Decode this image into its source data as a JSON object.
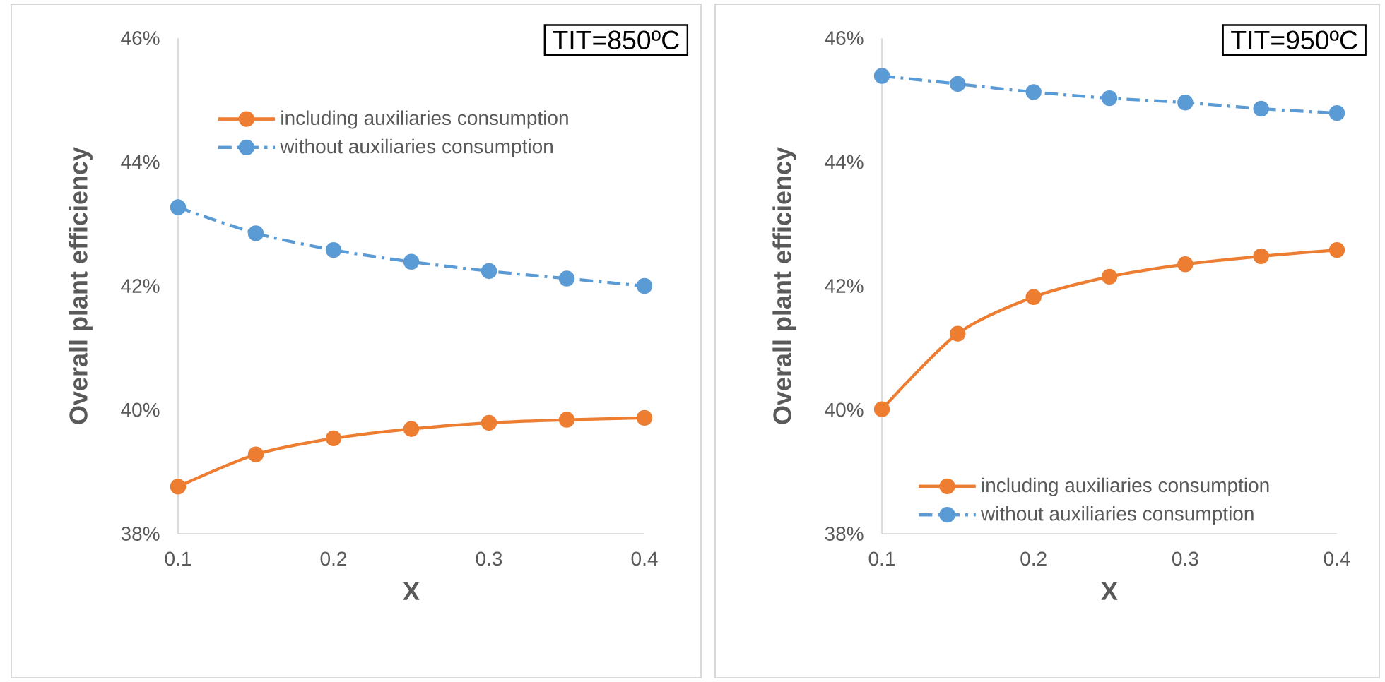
{
  "chart_data": [
    {
      "type": "line",
      "title": "TIT=850ºC",
      "xlabel": "X",
      "ylabel": "Overall plant efficiency",
      "x": [
        0.1,
        0.15,
        0.2,
        0.25,
        0.3,
        0.35,
        0.4
      ],
      "xlim": [
        0.1,
        0.4
      ],
      "xticks": [
        0.1,
        0.2,
        0.3,
        0.4
      ],
      "ylim": [
        38,
        46
      ],
      "yticks": [
        {
          "value": 38,
          "label": "38%"
        },
        {
          "value": 40,
          "label": "40%"
        },
        {
          "value": 42,
          "label": "42%"
        },
        {
          "value": 44,
          "label": "44%"
        },
        {
          "value": 46,
          "label": "46%"
        }
      ],
      "legend": "top right",
      "marker": "circle",
      "series": [
        {
          "name": "including auxiliaries consumption",
          "color": "#ed7d31",
          "line_style": "solid",
          "values": [
            38.76,
            39.28,
            39.54,
            39.69,
            39.79,
            39.84,
            39.87
          ]
        },
        {
          "name": "without auxiliaries consumption",
          "color": "#5b9bd5",
          "line_style": "dashed",
          "values": [
            43.27,
            42.85,
            42.58,
            42.39,
            42.24,
            42.12,
            42.0
          ]
        }
      ]
    },
    {
      "type": "line",
      "title": "TIT=950ºC",
      "xlabel": "X",
      "ylabel": "Overall plant efficiency",
      "x": [
        0.1,
        0.15,
        0.2,
        0.25,
        0.3,
        0.35,
        0.4
      ],
      "xlim": [
        0.1,
        0.4
      ],
      "xticks": [
        0.1,
        0.2,
        0.3,
        0.4
      ],
      "ylim": [
        38,
        46
      ],
      "yticks": [
        {
          "value": 38,
          "label": "38%"
        },
        {
          "value": 40,
          "label": "40%"
        },
        {
          "value": 42,
          "label": "42%"
        },
        {
          "value": 44,
          "label": "44%"
        },
        {
          "value": 46,
          "label": "46%"
        }
      ],
      "legend": "bottom right",
      "marker": "circle",
      "series": [
        {
          "name": "including auxiliaries consumption",
          "color": "#ed7d31",
          "line_style": "solid",
          "values": [
            40.01,
            41.23,
            41.82,
            42.15,
            42.35,
            42.48,
            42.58
          ]
        },
        {
          "name": "without auxiliaries consumption",
          "color": "#5b9bd5",
          "line_style": "dashed",
          "values": [
            45.39,
            45.26,
            45.13,
            45.03,
            44.96,
            44.86,
            44.79
          ]
        }
      ]
    }
  ]
}
